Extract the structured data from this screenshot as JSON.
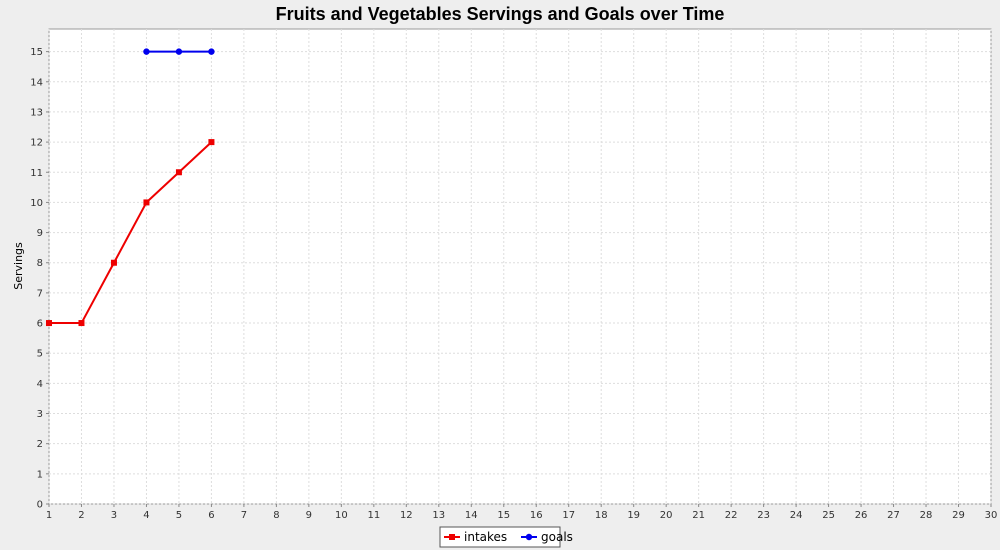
{
  "chart_data": {
    "type": "line",
    "title": "Fruits and Vegetables Servings and Goals over Time",
    "xlabel": "",
    "ylabel": "Servings",
    "xlim": [
      1,
      30
    ],
    "ylim": [
      0,
      15.75
    ],
    "xticks": [
      1,
      2,
      3,
      4,
      5,
      6,
      7,
      8,
      9,
      10,
      11,
      12,
      13,
      14,
      15,
      16,
      17,
      18,
      19,
      20,
      21,
      22,
      23,
      24,
      25,
      26,
      27,
      28,
      29,
      30
    ],
    "yticks": [
      0,
      1,
      2,
      3,
      4,
      5,
      6,
      7,
      8,
      9,
      10,
      11,
      12,
      13,
      14,
      15
    ],
    "grid": true,
    "legend_position": "bottom",
    "series": [
      {
        "name": "intakes",
        "color": "#ee0000",
        "marker": "square",
        "x": [
          1,
          2,
          3,
          4,
          5,
          6
        ],
        "y": [
          6,
          6,
          8,
          10,
          11,
          12
        ]
      },
      {
        "name": "goals",
        "color": "#0000ee",
        "marker": "circle",
        "x": [
          4,
          5,
          6
        ],
        "y": [
          15,
          15,
          15
        ]
      }
    ]
  }
}
